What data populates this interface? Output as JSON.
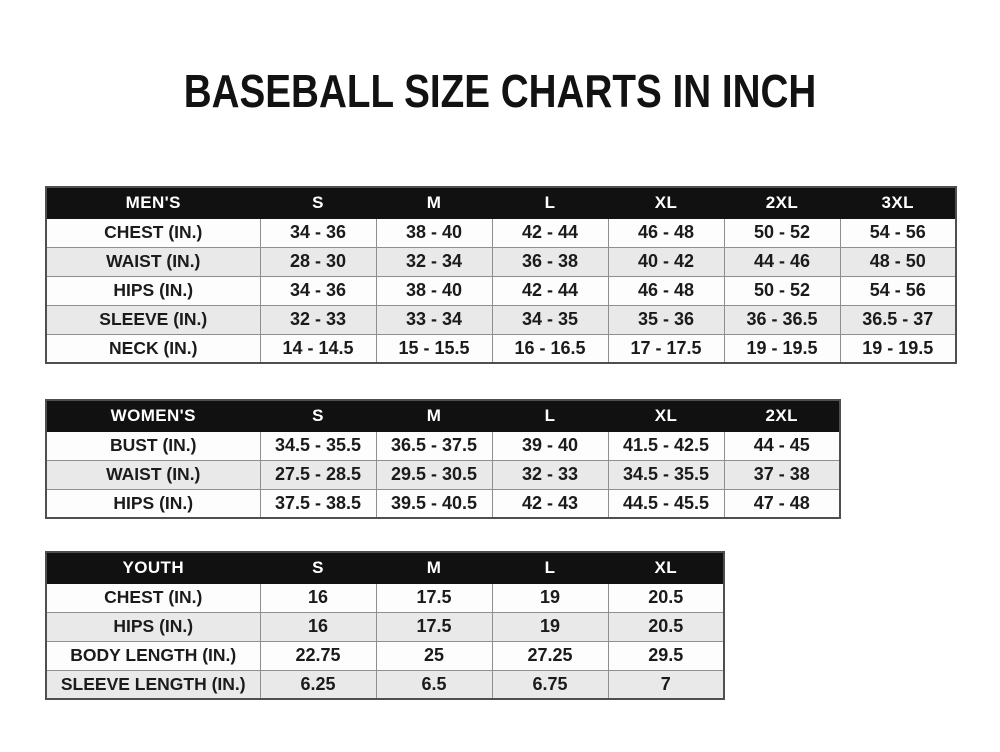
{
  "page": {
    "title": "BASEBALL SIZE CHARTS IN INCH"
  },
  "colors": {
    "page_bg": "#ffffff",
    "header_bg": "#111111",
    "header_text": "#ffffff",
    "row_alt_bg": "#e9e9e9",
    "border_outer": "#4f4f4f",
    "border_inner": "#8f8f8f",
    "text": "#1b1b1b"
  },
  "chart_data": [
    {
      "type": "table",
      "name": "mens",
      "header": [
        "MEN'S",
        "S",
        "M",
        "L",
        "XL",
        "2XL",
        "3XL"
      ],
      "rows": [
        [
          "CHEST (IN.)",
          "34 - 36",
          "38 - 40",
          "42 - 44",
          "46 - 48",
          "50 - 52",
          "54 - 56"
        ],
        [
          "WAIST (IN.)",
          "28 - 30",
          "32 - 34",
          "36 - 38",
          "40 - 42",
          "44 - 46",
          "48 - 50"
        ],
        [
          "HIPS (IN.)",
          "34 - 36",
          "38 - 40",
          "42 - 44",
          "46 - 48",
          "50 - 52",
          "54 - 56"
        ],
        [
          "SLEEVE (IN.)",
          "32 - 33",
          "33 - 34",
          "34 - 35",
          "35 - 36",
          "36 - 36.5",
          "36.5 - 37"
        ],
        [
          "NECK (IN.)",
          "14 - 14.5",
          "15 - 15.5",
          "16 - 16.5",
          "17 - 17.5",
          "19 - 19.5",
          "19 - 19.5"
        ]
      ]
    },
    {
      "type": "table",
      "name": "womens",
      "header": [
        "WOMEN'S",
        "S",
        "M",
        "L",
        "XL",
        "2XL"
      ],
      "rows": [
        [
          "BUST (IN.)",
          "34.5 - 35.5",
          "36.5 - 37.5",
          "39 - 40",
          "41.5 - 42.5",
          "44 - 45"
        ],
        [
          "WAIST (IN.)",
          "27.5 - 28.5",
          "29.5 - 30.5",
          "32 - 33",
          "34.5 - 35.5",
          "37 - 38"
        ],
        [
          "HIPS (IN.)",
          "37.5 - 38.5",
          "39.5 - 40.5",
          "42 - 43",
          "44.5 - 45.5",
          "47 - 48"
        ]
      ]
    },
    {
      "type": "table",
      "name": "youth",
      "header": [
        "YOUTH",
        "S",
        "M",
        "L",
        "XL"
      ],
      "rows": [
        [
          "CHEST (IN.)",
          "16",
          "17.5",
          "19",
          "20.5"
        ],
        [
          "HIPS (IN.)",
          "16",
          "17.5",
          "19",
          "20.5"
        ],
        [
          "BODY LENGTH (IN.)",
          "22.75",
          "25",
          "27.25",
          "29.5"
        ],
        [
          "SLEEVE LENGTH (IN.)",
          "6.25",
          "6.5",
          "6.75",
          "7"
        ]
      ]
    }
  ]
}
